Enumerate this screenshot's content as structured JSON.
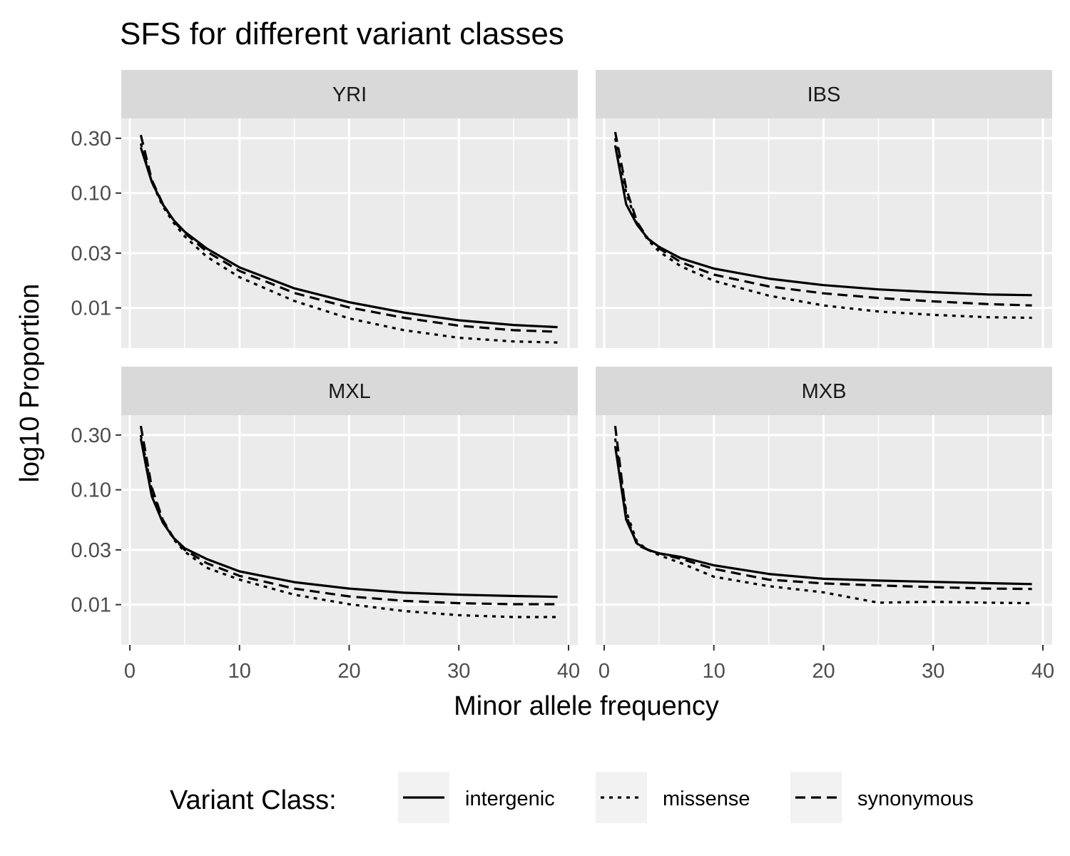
{
  "chart_data": {
    "type": "line",
    "title": "SFS for different variant classes",
    "xlabel": "Minor allele frequency",
    "ylabel": "log10  Proportion",
    "xlim": [
      0,
      40
    ],
    "ylim_log10": [
      -2.35,
      -0.35
    ],
    "x_ticks": [
      0,
      10,
      20,
      30,
      40
    ],
    "y_ticks": [
      0.3,
      0.1,
      0.03,
      0.01
    ],
    "y_tick_labels": [
      "0.30",
      "0.10",
      "0.03",
      "0.01"
    ],
    "y_scale": "log10",
    "grid": true,
    "legend": {
      "title": "Variant Class:",
      "position": "bottom",
      "entries": [
        {
          "name": "intergenic",
          "linetype": "solid"
        },
        {
          "name": "missense",
          "linetype": "dotted"
        },
        {
          "name": "synonymous",
          "linetype": "dashed"
        }
      ]
    },
    "x": [
      1,
      2,
      3,
      4,
      5,
      7,
      10,
      15,
      20,
      25,
      30,
      35,
      39
    ],
    "panels": [
      {
        "name": "YRI",
        "series": [
          {
            "name": "intergenic",
            "values": [
              0.25,
              0.125,
              0.08,
              0.058,
              0.046,
              0.033,
              0.0225,
              0.0148,
              0.0112,
              0.0091,
              0.0078,
              0.0071,
              0.0068
            ]
          },
          {
            "name": "missense",
            "values": [
              0.27,
              0.125,
              0.077,
              0.055,
              0.042,
              0.028,
              0.0185,
              0.0115,
              0.0081,
              0.0064,
              0.0055,
              0.0051,
              0.005
            ]
          },
          {
            "name": "synonymous",
            "values": [
              0.32,
              0.13,
              0.081,
              0.057,
              0.045,
              0.031,
              0.021,
              0.0135,
              0.0101,
              0.0082,
              0.007,
              0.0064,
              0.0062
            ]
          }
        ]
      },
      {
        "name": "IBS",
        "series": [
          {
            "name": "intergenic",
            "values": [
              0.26,
              0.08,
              0.053,
              0.04,
              0.034,
              0.027,
              0.022,
              0.018,
              0.0158,
              0.0145,
              0.0137,
              0.0131,
              0.0129
            ]
          },
          {
            "name": "missense",
            "values": [
              0.3,
              0.1,
              0.054,
              0.039,
              0.031,
              0.023,
              0.0172,
              0.0128,
              0.0105,
              0.0093,
              0.0087,
              0.0083,
              0.0082
            ]
          },
          {
            "name": "synonymous",
            "values": [
              0.34,
              0.11,
              0.056,
              0.04,
              0.033,
              0.025,
              0.0195,
              0.0154,
              0.0134,
              0.0122,
              0.0114,
              0.0108,
              0.0105
            ]
          }
        ]
      },
      {
        "name": "MXL",
        "series": [
          {
            "name": "intergenic",
            "values": [
              0.28,
              0.088,
              0.052,
              0.038,
              0.031,
              0.025,
              0.0195,
              0.0157,
              0.0138,
              0.0127,
              0.0122,
              0.0119,
              0.0117
            ]
          },
          {
            "name": "missense",
            "values": [
              0.3,
              0.1,
              0.054,
              0.037,
              0.029,
              0.021,
              0.0165,
              0.0122,
              0.0101,
              0.0088,
              0.0081,
              0.0078,
              0.0078
            ]
          },
          {
            "name": "synonymous",
            "values": [
              0.36,
              0.105,
              0.055,
              0.038,
              0.03,
              0.023,
              0.0178,
              0.0138,
              0.0118,
              0.0108,
              0.0103,
              0.0101,
              0.0101
            ]
          }
        ]
      },
      {
        "name": "MXB",
        "series": [
          {
            "name": "intergenic",
            "values": [
              0.24,
              0.055,
              0.034,
              0.03,
              0.028,
              0.026,
              0.022,
              0.0185,
              0.0168,
              0.0162,
              0.0158,
              0.0154,
              0.0151
            ]
          },
          {
            "name": "missense",
            "values": [
              0.28,
              0.065,
              0.035,
              0.03,
              0.027,
              0.023,
              0.0175,
              0.0145,
              0.0128,
              0.0104,
              0.0106,
              0.0104,
              0.0103
            ]
          },
          {
            "name": "synonymous",
            "values": [
              0.36,
              0.06,
              0.033,
              0.03,
              0.028,
              0.025,
              0.0205,
              0.0165,
              0.0153,
              0.0147,
              0.0142,
              0.0138,
              0.0137
            ]
          }
        ]
      }
    ]
  }
}
